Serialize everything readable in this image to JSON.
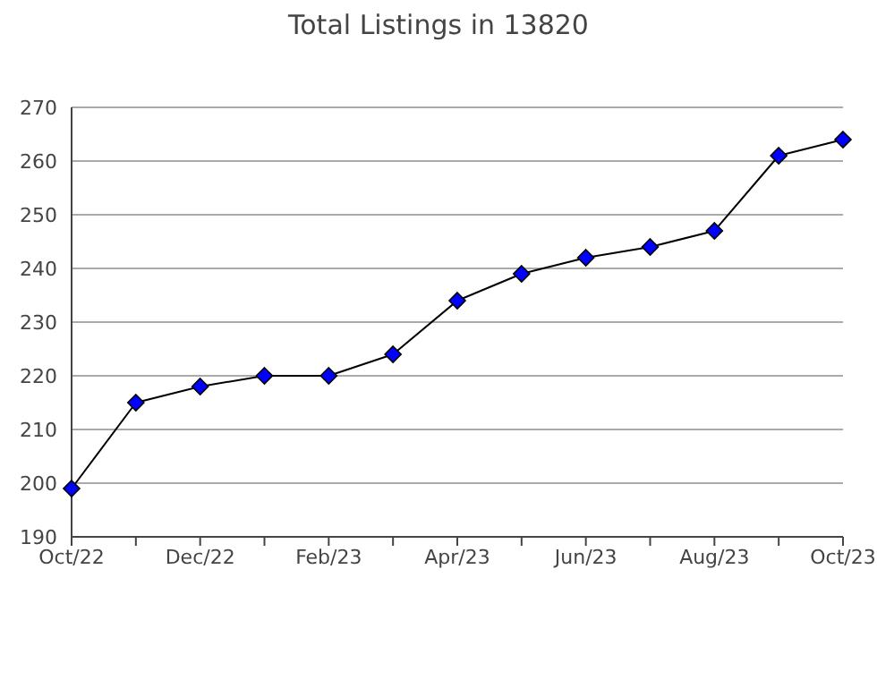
{
  "chart_data": {
    "type": "line",
    "title": "Total Listings in 13820",
    "categories": [
      "Oct/22",
      null,
      "Dec/22",
      null,
      "Feb/23",
      null,
      "Apr/23",
      null,
      "Jun/23",
      null,
      "Aug/23",
      null,
      "Oct/23"
    ],
    "series": [
      {
        "color": "#0000ff",
        "values": [
          199,
          215,
          218,
          220,
          220,
          224,
          234,
          239,
          242,
          244,
          247,
          261,
          264
        ]
      }
    ],
    "ylim": [
      190,
      270
    ],
    "yticks": [
      190,
      200,
      210,
      220,
      230,
      240,
      250,
      260,
      270
    ],
    "grid": "y",
    "marker": "diamond",
    "line_style": "solid",
    "legend": false
  }
}
